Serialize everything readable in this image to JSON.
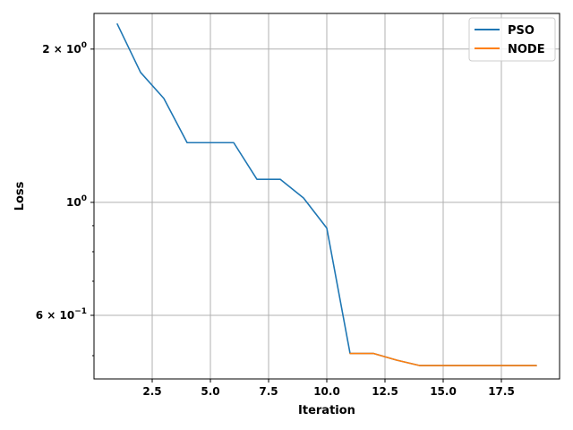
{
  "chart_data": {
    "type": "line",
    "title": "",
    "xlabel": "Iteration",
    "ylabel": "Loss",
    "xlim": [
      -0.0,
      20.0
    ],
    "ylim": [
      0.45,
      2.35
    ],
    "yscale": "log",
    "grid": true,
    "legend_placement": "top-right",
    "x_ticks": [
      2.5,
      5.0,
      7.5,
      10.0,
      12.5,
      15.0,
      17.5
    ],
    "x_tick_labels": [
      "2.5",
      "5.0",
      "7.5",
      "10.0",
      "12.5",
      "15.0",
      "17.5"
    ],
    "y_ticks": [
      {
        "value": 2.0,
        "base": "2 × 10",
        "exp": "0"
      },
      {
        "value": 1.0,
        "base": "10",
        "exp": "0"
      },
      {
        "value": 0.6,
        "base": "6 × 10",
        "exp": "−1"
      }
    ],
    "series": [
      {
        "name": "PSO",
        "color": "#1f77b4",
        "x": [
          1,
          2,
          3,
          4,
          5,
          6,
          7,
          8,
          9,
          10,
          11,
          12,
          13,
          14,
          15,
          16,
          17,
          18,
          19
        ],
        "y": [
          2.24,
          1.8,
          1.6,
          1.31,
          1.31,
          1.31,
          1.11,
          1.11,
          1.02,
          0.89,
          0.505,
          0.505,
          0.49,
          0.478,
          0.478,
          0.478,
          0.478,
          0.478,
          0.478
        ]
      },
      {
        "name": "NODE",
        "color": "#ff7f0e",
        "x": [
          11,
          12,
          13,
          14,
          15,
          16,
          17,
          18,
          19
        ],
        "y": [
          0.505,
          0.505,
          0.49,
          0.478,
          0.478,
          0.478,
          0.478,
          0.478,
          0.478
        ]
      }
    ]
  }
}
